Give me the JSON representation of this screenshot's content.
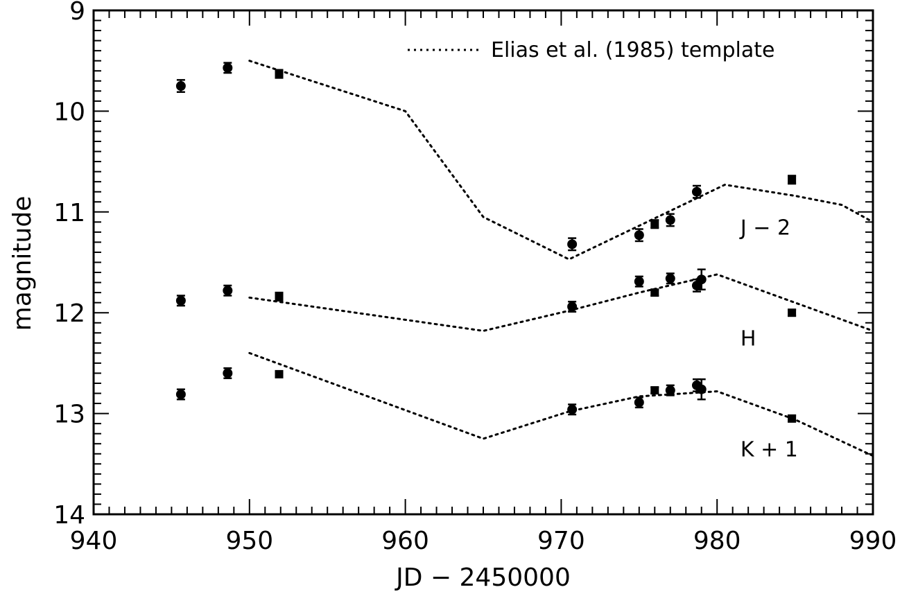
{
  "chart_data": {
    "type": "scatter",
    "xlabel": "JD − 2450000",
    "ylabel": "magnitude",
    "xlim": [
      940,
      990
    ],
    "ylim": [
      9,
      14
    ],
    "y_inverted": true,
    "x_ticks": [
      940,
      950,
      960,
      970,
      980,
      990
    ],
    "y_ticks": [
      9,
      10,
      11,
      12,
      13,
      14
    ],
    "grid": false,
    "legend": {
      "position": "top-right",
      "entries": [
        {
          "label": "Elias et al. (1985) template",
          "style": "dotted"
        }
      ]
    },
    "band_labels": [
      {
        "text": "J − 2",
        "x": 981.5,
        "y": 11.15
      },
      {
        "text": "H",
        "x": 981.5,
        "y": 12.25
      },
      {
        "text": "K + 1",
        "x": 981.5,
        "y": 13.35
      }
    ],
    "series": [
      {
        "points": [
          {
            "x": 945.6,
            "y": 9.75,
            "err": 0.06,
            "marker": "circle"
          },
          {
            "x": 948.6,
            "y": 9.57,
            "err": 0.05,
            "marker": "circle"
          },
          {
            "x": 951.9,
            "y": 9.63,
            "err": 0.04,
            "marker": "square"
          },
          {
            "x": 970.7,
            "y": 11.32,
            "err": 0.06,
            "marker": "circle"
          },
          {
            "x": 975.0,
            "y": 11.23,
            "err": 0.06,
            "marker": "circle"
          },
          {
            "x": 976.0,
            "y": 11.12,
            "err": 0.04,
            "marker": "square"
          },
          {
            "x": 977.0,
            "y": 11.08,
            "err": 0.06,
            "marker": "circle"
          },
          {
            "x": 978.7,
            "y": 10.8,
            "err": 0.06,
            "marker": "circle"
          },
          {
            "x": 984.8,
            "y": 10.68,
            "err": 0.04,
            "marker": "square"
          }
        ]
      },
      {
        "points": [
          {
            "x": 945.6,
            "y": 11.88,
            "err": 0.05,
            "marker": "circle"
          },
          {
            "x": 948.6,
            "y": 11.78,
            "err": 0.05,
            "marker": "circle"
          },
          {
            "x": 951.9,
            "y": 11.84,
            "err": 0.04,
            "marker": "square"
          },
          {
            "x": 970.7,
            "y": 11.94,
            "err": 0.05,
            "marker": "circle"
          },
          {
            "x": 975.0,
            "y": 11.69,
            "err": 0.05,
            "marker": "circle"
          },
          {
            "x": 976.0,
            "y": 11.8,
            "err": 0.03,
            "marker": "square"
          },
          {
            "x": 977.0,
            "y": 11.66,
            "err": 0.05,
            "marker": "circle"
          },
          {
            "x": 978.7,
            "y": 11.73,
            "err": 0.06,
            "marker": "circle"
          },
          {
            "x": 979.0,
            "y": 11.67,
            "err": 0.1,
            "marker": "circle"
          },
          {
            "x": 984.8,
            "y": 12.0,
            "err": 0.03,
            "marker": "square"
          }
        ]
      },
      {
        "points": [
          {
            "x": 945.6,
            "y": 12.81,
            "err": 0.05,
            "marker": "circle"
          },
          {
            "x": 948.6,
            "y": 12.6,
            "err": 0.05,
            "marker": "circle"
          },
          {
            "x": 951.9,
            "y": 12.61,
            "err": 0.03,
            "marker": "square"
          },
          {
            "x": 970.7,
            "y": 12.96,
            "err": 0.05,
            "marker": "circle"
          },
          {
            "x": 975.0,
            "y": 12.89,
            "err": 0.05,
            "marker": "circle"
          },
          {
            "x": 976.0,
            "y": 12.77,
            "err": 0.03,
            "marker": "square"
          },
          {
            "x": 977.0,
            "y": 12.77,
            "err": 0.05,
            "marker": "circle"
          },
          {
            "x": 978.7,
            "y": 12.72,
            "err": 0.06,
            "marker": "circle"
          },
          {
            "x": 979.0,
            "y": 12.76,
            "err": 0.1,
            "marker": "circle"
          },
          {
            "x": 984.8,
            "y": 13.05,
            "err": 0.03,
            "marker": "square"
          }
        ]
      }
    ],
    "templates": [
      {
        "style": "dotted",
        "x": [
          950,
          960,
          965,
          970.5,
          980.5,
          985,
          988,
          990
        ],
        "y": [
          9.5,
          10.0,
          11.05,
          11.47,
          10.73,
          10.84,
          10.93,
          11.1
        ]
      },
      {
        "style": "dotted",
        "x": [
          950,
          965,
          970.5,
          975,
          980,
          985,
          990
        ],
        "y": [
          11.85,
          12.18,
          11.98,
          11.8,
          11.62,
          11.9,
          12.18
        ]
      },
      {
        "style": "dotted",
        "x": [
          950,
          965,
          970.5,
          975,
          980,
          985,
          990
        ],
        "y": [
          12.4,
          13.25,
          12.98,
          12.83,
          12.78,
          13.06,
          13.42
        ]
      }
    ]
  }
}
